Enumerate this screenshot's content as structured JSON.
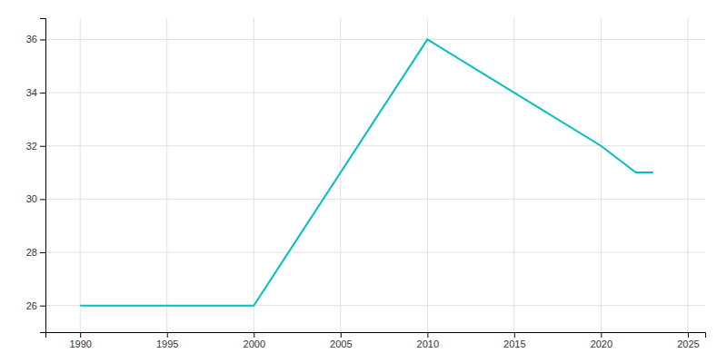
{
  "chart_data": {
    "type": "line",
    "x": [
      1990,
      2000,
      2010,
      2015,
      2020,
      2022,
      2023
    ],
    "values": [
      26,
      26,
      36,
      34,
      32,
      31,
      31
    ],
    "color": "#00BFBF",
    "xlim": [
      1988,
      2026
    ],
    "ylim": [
      25.0,
      36.8
    ],
    "xticks": [
      1990,
      1995,
      2000,
      2005,
      2010,
      2015,
      2020,
      2025
    ],
    "yticks": [
      26,
      28,
      30,
      32,
      34,
      36
    ],
    "grid": true
  }
}
